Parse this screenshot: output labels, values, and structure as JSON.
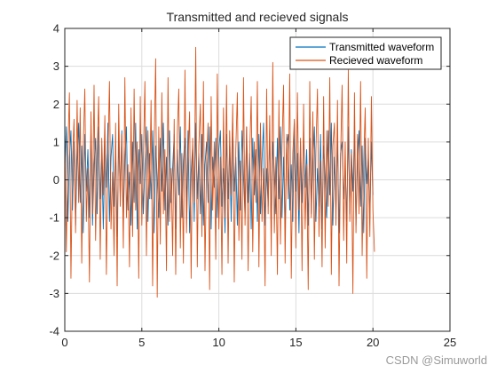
{
  "colors": {
    "transmitted": "#0072BD",
    "received": "#D95319",
    "grid": "#dcdcdc",
    "axis": "#262626"
  },
  "watermark": "CSDN @Simuworld",
  "chart_data": {
    "type": "line",
    "title": "Transmitted and recieved signals",
    "xlabel": "",
    "ylabel": "",
    "xlim": [
      0,
      25
    ],
    "ylim": [
      -4,
      4
    ],
    "xticks": [
      "0",
      "5",
      "10",
      "15",
      "20",
      "25"
    ],
    "yticks": [
      "-4",
      "-3",
      "-2",
      "-1",
      "0",
      "1",
      "2",
      "3",
      "4"
    ],
    "grid": true,
    "legend_location": "top-right",
    "x_start": 0,
    "x_step": 0.1,
    "series": [
      {
        "name": "Transmitted waveform",
        "values": [
          0.2,
          1.4,
          -1.1,
          0.6,
          1.3,
          -0.8,
          1.0,
          -1.2,
          0.5,
          1.5,
          -0.6,
          0.9,
          -1.4,
          1.2,
          -0.3,
          0.8,
          -1.0,
          1.3,
          -1.2,
          0.4,
          1.1,
          -0.9,
          1.4,
          -0.5,
          0.7,
          -1.3,
          1.0,
          -0.2,
          1.5,
          -1.1,
          0.6,
          1.2,
          -0.7,
          0.9,
          -1.5,
          1.1,
          -0.4,
          1.3,
          -1.0,
          0.5,
          1.4,
          -0.8,
          0.2,
          -1.2,
          1.0,
          -0.6,
          1.5,
          -1.3,
          0.8,
          -0.1,
          1.2,
          -0.9,
          0.4,
          1.4,
          -1.1,
          0.7,
          -0.5,
          1.3,
          -1.4,
          0.9,
          0.1,
          -1.0,
          1.1,
          -0.3,
          1.5,
          -0.8,
          0.6,
          -1.2,
          1.3,
          -0.6,
          0.3,
          1.2,
          -1.3,
          0.8,
          -0.4,
          1.4,
          -1.0,
          0.5,
          1.1,
          -0.7,
          1.3,
          -1.4,
          0.2,
          0.9,
          -1.1,
          1.5,
          -0.5,
          0.7,
          -0.9,
          1.2,
          -1.2,
          0.4,
          1.0,
          -0.6,
          1.4,
          -1.3,
          0.6,
          -0.2,
          1.1,
          -1.0,
          0.8,
          1.3,
          -0.7,
          0.3,
          -1.4,
          1.2,
          -0.5,
          0.9,
          -1.1,
          1.5,
          -0.3,
          0.6,
          -1.2,
          1.0,
          -0.8,
          1.3,
          0.1,
          -1.0,
          1.4,
          -0.6,
          0.7,
          -1.3,
          1.1,
          -0.4,
          0.8,
          -1.1,
          1.2,
          -0.9,
          0.5,
          1.5,
          -1.2,
          0.3,
          -0.7,
          1.3,
          -1.4,
          1.0,
          0.2,
          -0.9,
          1.1,
          -0.5,
          1.4,
          -1.0,
          0.6,
          -1.3,
          0.9,
          1.2,
          -0.8,
          0.4,
          -1.1,
          1.5,
          -0.3,
          0.7,
          -1.4,
          1.0,
          -0.6,
          1.3,
          -0.2,
          0.8,
          -1.2,
          1.1,
          -0.9,
          0.5,
          1.4,
          -1.1,
          0.3,
          -0.7,
          1.2,
          -1.3,
          0.9,
          0.1,
          -1.0,
          1.3,
          -0.4,
          1.5,
          -1.2,
          0.6,
          -0.8,
          1.1,
          -1.4,
          0.7,
          1.0,
          -0.5,
          0.4,
          -1.1,
          1.4,
          -0.9,
          0.8,
          -0.3,
          1.2,
          -1.2,
          0.5,
          1.3,
          -0.7,
          0.9,
          -1.4,
          1.1,
          -0.1,
          0.6,
          -1.0,
          1.0,
          -0.4
        ]
      },
      {
        "name": "Recieved waveform",
        "values": [
          1.3,
          -1.9,
          0.8,
          2.3,
          -2.6,
          0.5,
          1.6,
          -1.4,
          2.1,
          -0.6,
          1.9,
          -2.2,
          0.9,
          2.4,
          -1.1,
          0.3,
          -2.7,
          1.8,
          -0.9,
          2.5,
          -1.6,
          0.7,
          2.2,
          -2.1,
          1.1,
          -0.4,
          1.7,
          -2.5,
          0.6,
          2.6,
          -1.3,
          0.2,
          -2.0,
          1.5,
          -2.8,
          2.0,
          -0.7,
          1.2,
          -1.8,
          2.7,
          -1.0,
          0.4,
          -2.3,
          1.9,
          -1.5,
          2.4,
          -0.8,
          1.0,
          -2.6,
          2.2,
          -1.2,
          0.6,
          2.6,
          -2.0,
          1.3,
          -0.5,
          2.1,
          -2.8,
          0.9,
          3.2,
          -3.1,
          1.4,
          -1.7,
          2.3,
          -0.9,
          0.8,
          -2.4,
          2.7,
          -1.1,
          0.3,
          -2.0,
          1.6,
          -2.5,
          1.2,
          2.4,
          -1.8,
          0.7,
          -2.2,
          2.9,
          -1.4,
          0.5,
          1.8,
          -2.6,
          1.1,
          -0.6,
          3.5,
          -2.3,
          0.9,
          2.0,
          -1.5,
          2.6,
          -2.4,
          0.4,
          1.5,
          -2.9,
          2.2,
          -0.8,
          1.0,
          -2.1,
          2.8,
          -1.3,
          0.6,
          -2.5,
          1.9,
          -1.0,
          2.5,
          -2.2,
          1.3,
          -0.4,
          2.0,
          -2.7,
          0.8,
          2.3,
          -1.6,
          0.5,
          -2.1,
          2.7,
          -1.2,
          1.4,
          -2.4,
          0.7,
          2.2,
          -1.9,
          1.0,
          -0.6,
          2.6,
          -2.3,
          1.5,
          -1.1,
          0.3,
          -2.8,
          2.4,
          -0.9,
          1.7,
          -2.0,
          3.1,
          -1.4,
          0.6,
          -2.5,
          2.1,
          -1.7,
          0.9,
          2.5,
          -2.2,
          1.2,
          -0.5,
          2.8,
          -2.6,
          0.7,
          1.6,
          -1.8,
          2.3,
          -0.8,
          1.1,
          -2.4,
          2.0,
          -1.3,
          0.4,
          -2.9,
          2.6,
          -1.0,
          1.8,
          -2.1,
          0.8,
          2.4,
          -1.5,
          0.5,
          -2.3,
          2.2,
          -1.8,
          1.3,
          -0.7,
          2.7,
          -2.5,
          0.9,
          1.5,
          -1.2,
          2.1,
          -2.8,
          0.6,
          2.5,
          -1.6,
          1.0,
          -2.2,
          2.9,
          -1.1,
          0.7,
          -3.0,
          2.3,
          -1.4,
          1.2,
          -0.9,
          2.6,
          -2.0,
          0.5,
          1.9,
          -2.6,
          1.1,
          -1.5,
          2.2,
          -0.8,
          -1.9
        ]
      }
    ]
  }
}
